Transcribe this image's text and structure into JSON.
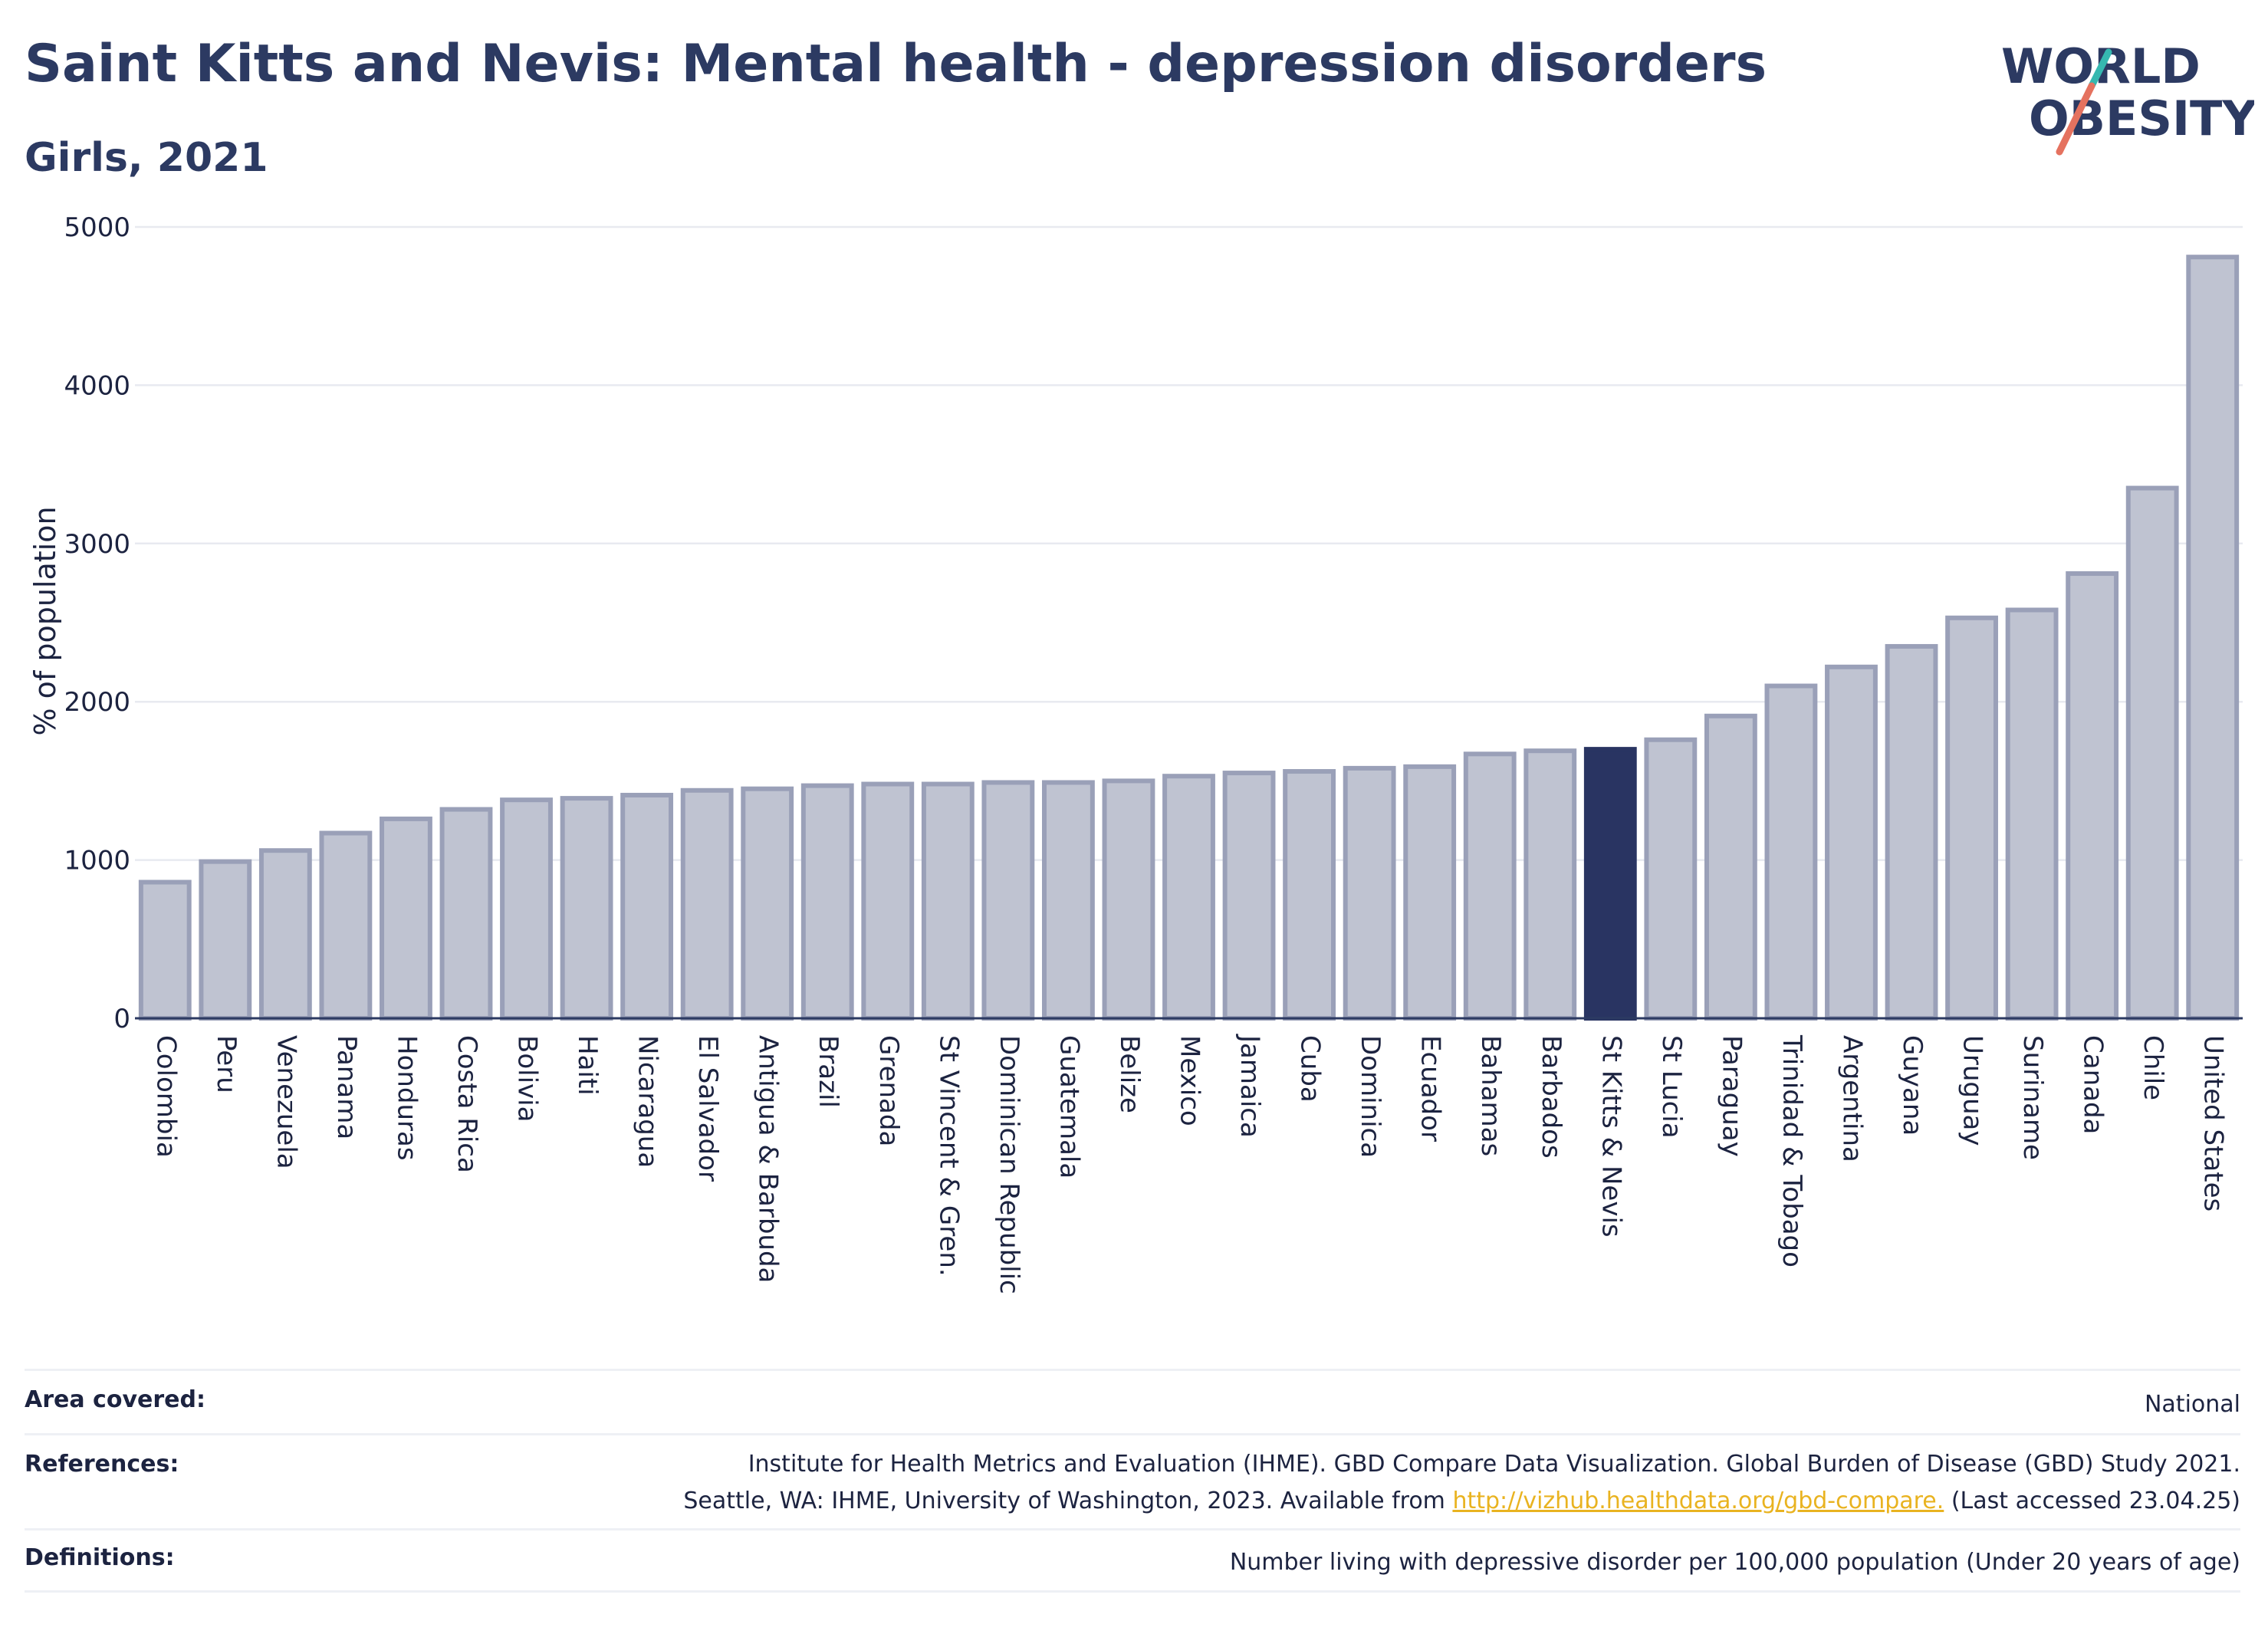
{
  "header": {
    "title": "Saint Kitts and Nevis: Mental health - depression disorders",
    "subtitle": "Girls, 2021"
  },
  "logo": {
    "line1": "WORLD",
    "line2": "OBESITY",
    "colors": {
      "text": "#2c3a62",
      "slash_red": "#e5725f",
      "slash_teal": "#36b8b0"
    }
  },
  "chart_data": {
    "type": "bar",
    "ylabel": "% of population",
    "xlabel": "",
    "ylim": [
      0,
      5000
    ],
    "yticks": [
      0,
      1000,
      2000,
      3000,
      4000,
      5000
    ],
    "grid": true,
    "highlight": "St Kitts & Nevis",
    "colors": {
      "bar": "#bfc3d1",
      "bar_edge": "#9aa0b8",
      "highlight": "#293462",
      "grid": "#e8eaf0",
      "axis": "#2c3a62"
    },
    "categories": [
      "Colombia",
      "Peru",
      "Venezuela",
      "Panama",
      "Honduras",
      "Costa Rica",
      "Bolivia",
      "Haiti",
      "Nicaragua",
      "El Salvador",
      "Antigua & Barbuda",
      "Brazil",
      "Grenada",
      "St Vincent & Gren.",
      "Dominican Republic",
      "Guatemala",
      "Belize",
      "Mexico",
      "Jamaica",
      "Cuba",
      "Dominica",
      "Ecuador",
      "Bahamas",
      "Barbados",
      "St Kitts & Nevis",
      "St Lucia",
      "Paraguay",
      "Trinidad & Tobago",
      "Argentina",
      "Guyana",
      "Uruguay",
      "Suriname",
      "Canada",
      "Chile",
      "United States"
    ],
    "values": [
      860,
      990,
      1060,
      1170,
      1260,
      1320,
      1380,
      1390,
      1410,
      1440,
      1450,
      1470,
      1480,
      1480,
      1490,
      1490,
      1500,
      1530,
      1550,
      1560,
      1580,
      1590,
      1670,
      1690,
      1700,
      1760,
      1910,
      2100,
      2220,
      2350,
      2530,
      2580,
      2810,
      3350,
      4810
    ]
  },
  "footer": {
    "area_label": "Area covered:",
    "area_value": "National",
    "references_label": "References:",
    "references_line1": "Institute for Health Metrics and Evaluation (IHME). GBD Compare Data Visualization. Global Burden of Disease (GBD) Study 2021.",
    "references_line2_prefix": "Seattle, WA: IHME, University of Washington, 2023. Available from ",
    "references_link": "http://vizhub.healthdata.org/gbd-compare.",
    "references_line2_suffix": " (Last accessed 23.04.25)",
    "definitions_label": "Definitions:",
    "definitions_value": "Number living with depressive disorder per 100,000 population (Under 20 years of age)"
  }
}
